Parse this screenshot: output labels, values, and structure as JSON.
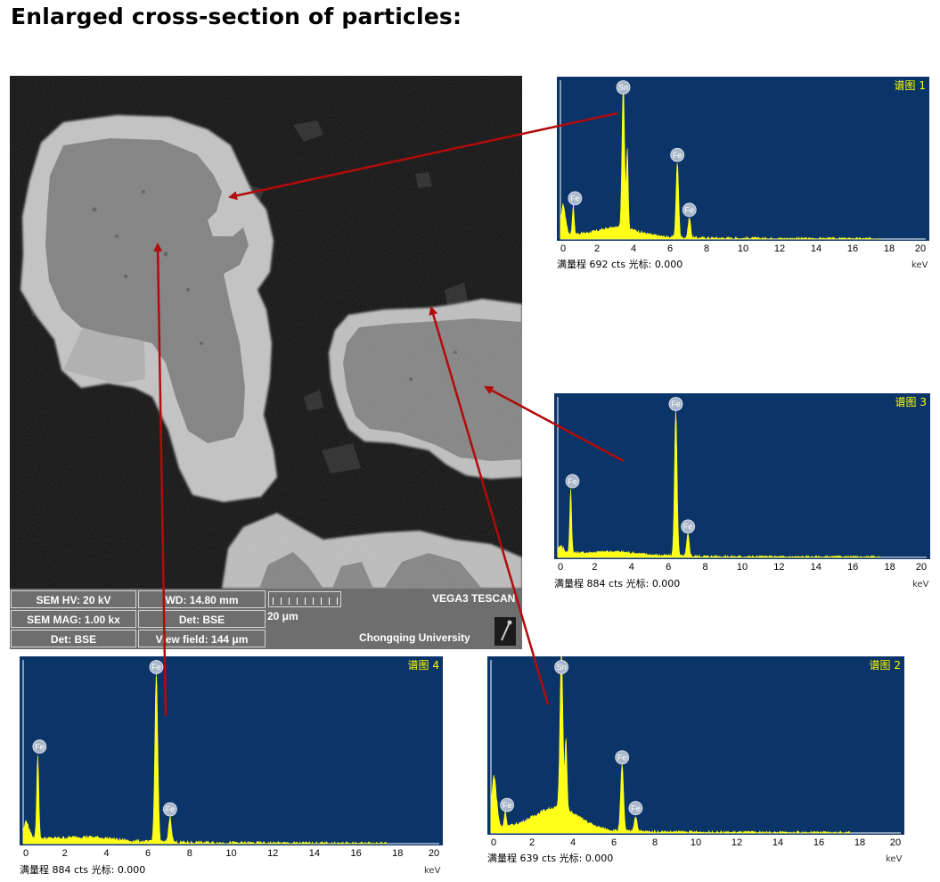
{
  "title": "Enlarged cross-section of particles:",
  "sem": {
    "hv": "SEM HV: 20 kV",
    "wd": "WD: 14.80 mm",
    "mag": "SEM MAG: 1.00 kx",
    "det_top": "Det: BSE",
    "det_bottom": "Det: BSE",
    "view_field": "View field: 144 μm",
    "scale": "20 μm",
    "instrument": "VEGA3 TESCAN",
    "institution": "Chongqing University"
  },
  "colors": {
    "plot_bg": "#0b3468",
    "spectrum": "#ffff1a",
    "arrow": "#b20b0b",
    "label": "#ffff00"
  },
  "spectra": [
    {
      "id": "spec-1",
      "title": "谱图 1",
      "footer_label": "满量程",
      "counts": "692 cts",
      "cursor_label": "光标:",
      "cursor": "0.000",
      "unit": "keV",
      "x_ticks": [
        "0",
        "2",
        "4",
        "6",
        "8",
        "10",
        "12",
        "14",
        "16",
        "18",
        "20"
      ],
      "peaks": [
        {
          "element": "Fe",
          "kev": 0.7
        },
        {
          "element": "Sn",
          "kev": 3.44
        },
        {
          "element": "Fe",
          "kev": 6.4
        },
        {
          "element": "Fe",
          "kev": 7.06
        }
      ]
    },
    {
      "id": "spec-3",
      "title": "谱图 3",
      "footer_label": "满量程",
      "counts": "884 cts",
      "cursor_label": "光标:",
      "cursor": "0.000",
      "unit": "keV",
      "x_ticks": [
        "0",
        "2",
        "4",
        "6",
        "8",
        "10",
        "12",
        "14",
        "16",
        "18",
        "20"
      ],
      "peaks": [
        {
          "element": "Fe",
          "kev": 0.7
        },
        {
          "element": "Fe",
          "kev": 6.4
        },
        {
          "element": "Fe",
          "kev": 7.06
        }
      ]
    },
    {
      "id": "spec-4",
      "title": "谱图 4",
      "footer_label": "满量程",
      "counts": "884 cts",
      "cursor_label": "光标:",
      "cursor": "0.000",
      "unit": "keV",
      "x_ticks": [
        "0",
        "2",
        "4",
        "6",
        "8",
        "10",
        "12",
        "14",
        "16",
        "18",
        "20"
      ],
      "peaks": [
        {
          "element": "Fe",
          "kev": 0.7
        },
        {
          "element": "Fe",
          "kev": 6.4
        },
        {
          "element": "Fe",
          "kev": 7.06
        }
      ]
    },
    {
      "id": "spec-2",
      "title": "谱图 2",
      "footer_label": "满量程",
      "counts": "639 cts",
      "cursor_label": "光标:",
      "cursor": "0.000",
      "unit": "keV",
      "x_ticks": [
        "0",
        "2",
        "4",
        "6",
        "8",
        "10",
        "12",
        "14",
        "16",
        "18",
        "20"
      ],
      "peaks": [
        {
          "element": "Fe",
          "kev": 0.7
        },
        {
          "element": "Sn",
          "kev": 3.44
        },
        {
          "element": "Fe",
          "kev": 6.4
        },
        {
          "element": "Fe",
          "kev": 7.06
        }
      ]
    }
  ]
}
